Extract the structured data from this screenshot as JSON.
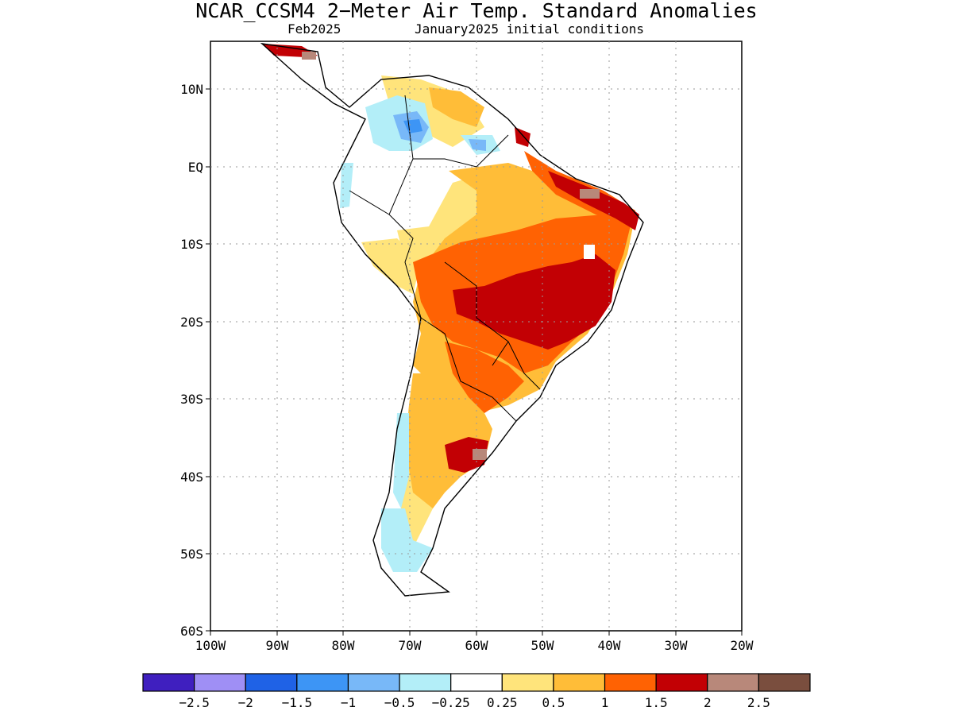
{
  "title": "NCAR_CCSM4 2−Meter Air Temp. Standard Anomalies",
  "subtitle_left": "Feb2025",
  "subtitle_right": "January2025 initial conditions",
  "map": {
    "lon_range": [
      -100,
      -20
    ],
    "lat_range": [
      -60,
      15
    ],
    "lat_ticks": [
      "10N",
      "EQ",
      "10S",
      "20S",
      "30S",
      "40S",
      "50S",
      "60S"
    ],
    "lon_ticks": [
      "100W",
      "90W",
      "80W",
      "70W",
      "60W",
      "50W",
      "40W",
      "30W",
      "20W"
    ],
    "gridlines": true
  },
  "colorbar": {
    "colors": [
      "#3f1fbf",
      "#9f8ff5",
      "#1f62e6",
      "#3d95f5",
      "#78b8f8",
      "#b3eef8",
      "#ffffff",
      "#ffe47b",
      "#ffbd38",
      "#ff6203",
      "#c20004",
      "#b8887a",
      "#7a4e3e"
    ],
    "labels": [
      "−2.5",
      "−2",
      "−1.5",
      "−1",
      "−0.5",
      "−0.25",
      "0.25",
      "0.5",
      "1",
      "1.5",
      "2",
      "2.5"
    ]
  }
}
